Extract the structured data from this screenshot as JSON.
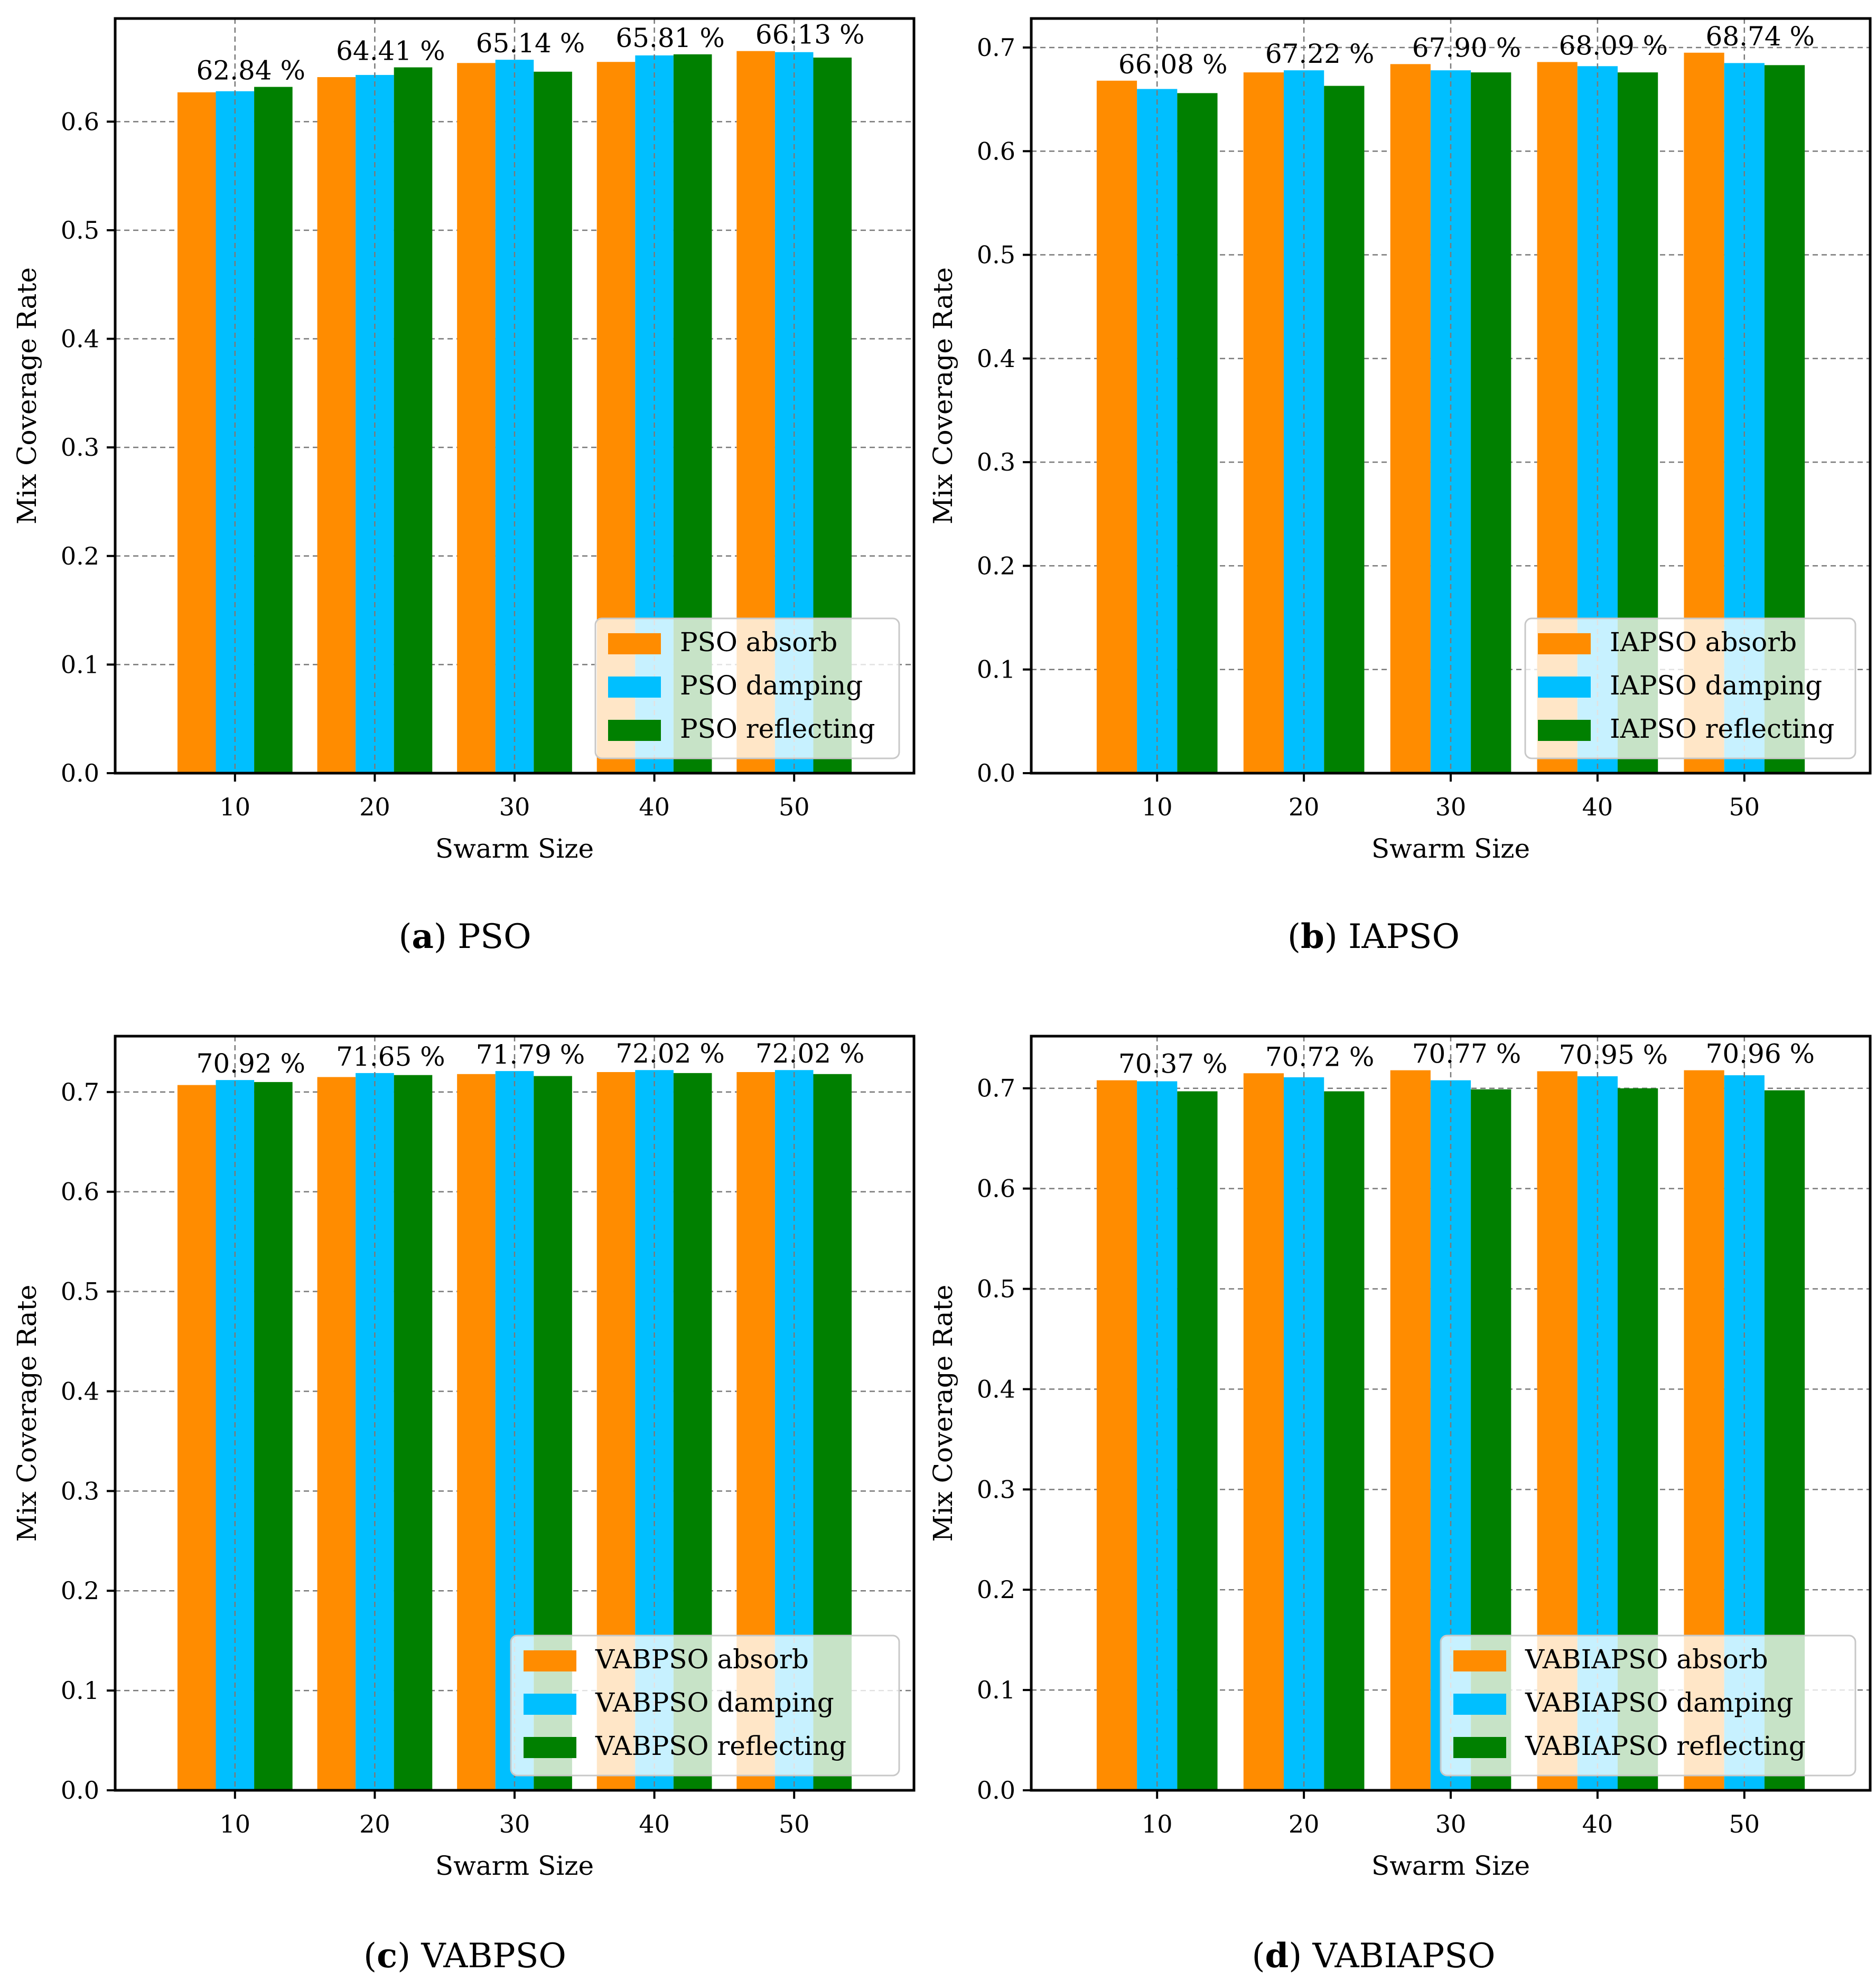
{
  "colors": {
    "absorb": "#FF8C00",
    "damping": "#00BFFF",
    "reflecting": "#008000"
  },
  "chart_data": [
    {
      "type": "bar",
      "caption_letter": "a",
      "caption_text": "PSO",
      "xlabel": "Swarm Size",
      "ylabel": "Mix Coverage Rate",
      "categories": [
        "10",
        "20",
        "30",
        "40",
        "50"
      ],
      "ylim": [
        0,
        0.695
      ],
      "yticks": [
        0.0,
        0.1,
        0.2,
        0.3,
        0.4,
        0.5,
        0.6
      ],
      "ytick_labels": [
        "0.0",
        "0.1",
        "0.2",
        "0.3",
        "0.4",
        "0.5",
        "0.6"
      ],
      "series": [
        {
          "name": "PSO absorb",
          "key": "absorb",
          "values": [
            0.627,
            0.641,
            0.654,
            0.655,
            0.665
          ]
        },
        {
          "name": "PSO damping",
          "key": "damping",
          "values": [
            0.628,
            0.643,
            0.657,
            0.661,
            0.664
          ]
        },
        {
          "name": "PSO reflecting",
          "key": "reflecting",
          "values": [
            0.632,
            0.65,
            0.646,
            0.662,
            0.659
          ]
        }
      ],
      "annotations": [
        "62.84 %",
        "64.41 %",
        "65.14 %",
        "65.81 %",
        "66.13 %"
      ],
      "legend_position": "bottom-right"
    },
    {
      "type": "bar",
      "caption_letter": "b",
      "caption_text": "IAPSO",
      "xlabel": "Swarm Size",
      "ylabel": "Mix Coverage Rate",
      "categories": [
        "10",
        "20",
        "30",
        "40",
        "50"
      ],
      "ylim": [
        0,
        0.728
      ],
      "yticks": [
        0.0,
        0.1,
        0.2,
        0.3,
        0.4,
        0.5,
        0.6,
        0.7
      ],
      "ytick_labels": [
        "0.0",
        "0.1",
        "0.2",
        "0.3",
        "0.4",
        "0.5",
        "0.6",
        "0.7"
      ],
      "series": [
        {
          "name": "IAPSO absorb",
          "key": "absorb",
          "values": [
            0.668,
            0.676,
            0.684,
            0.686,
            0.695
          ]
        },
        {
          "name": "IAPSO damping",
          "key": "damping",
          "values": [
            0.66,
            0.678,
            0.678,
            0.682,
            0.685
          ]
        },
        {
          "name": "IAPSO reflecting",
          "key": "reflecting",
          "values": [
            0.656,
            0.663,
            0.676,
            0.676,
            0.683
          ]
        }
      ],
      "annotations": [
        "66.08 %",
        "67.22 %",
        "67.90 %",
        "68.09 %",
        "68.74 %"
      ],
      "legend_position": "bottom-right"
    },
    {
      "type": "bar",
      "caption_letter": "c",
      "caption_text": "VABPSO",
      "xlabel": "Swarm Size",
      "ylabel": "Mix Coverage Rate",
      "categories": [
        "10",
        "20",
        "30",
        "40",
        "50"
      ],
      "ylim": [
        0,
        0.756
      ],
      "yticks": [
        0.0,
        0.1,
        0.2,
        0.3,
        0.4,
        0.5,
        0.6,
        0.7
      ],
      "ytick_labels": [
        "0.0",
        "0.1",
        "0.2",
        "0.3",
        "0.4",
        "0.5",
        "0.6",
        "0.7"
      ],
      "series": [
        {
          "name": "VABPSO absorb",
          "key": "absorb",
          "values": [
            0.707,
            0.715,
            0.718,
            0.72,
            0.72
          ]
        },
        {
          "name": "VABPSO damping",
          "key": "damping",
          "values": [
            0.712,
            0.719,
            0.721,
            0.722,
            0.722
          ]
        },
        {
          "name": "VABPSO reflecting",
          "key": "reflecting",
          "values": [
            0.71,
            0.717,
            0.716,
            0.719,
            0.718
          ]
        }
      ],
      "annotations": [
        "70.92 %",
        "71.65 %",
        "71.79 %",
        "72.02 %",
        "72.02 %"
      ],
      "legend_position": "bottom-right"
    },
    {
      "type": "bar",
      "caption_letter": "d",
      "caption_text": "VABIAPSO",
      "xlabel": "Swarm Size",
      "ylabel": "Mix Coverage Rate",
      "categories": [
        "10",
        "20",
        "30",
        "40",
        "50"
      ],
      "ylim": [
        0,
        0.752
      ],
      "yticks": [
        0.0,
        0.1,
        0.2,
        0.3,
        0.4,
        0.5,
        0.6,
        0.7
      ],
      "ytick_labels": [
        "0.0",
        "0.1",
        "0.2",
        "0.3",
        "0.4",
        "0.5",
        "0.6",
        "0.7"
      ],
      "series": [
        {
          "name": "VABIAPSO absorb",
          "key": "absorb",
          "values": [
            0.708,
            0.715,
            0.718,
            0.717,
            0.718
          ]
        },
        {
          "name": "VABIAPSO damping",
          "key": "damping",
          "values": [
            0.707,
            0.711,
            0.708,
            0.712,
            0.713
          ]
        },
        {
          "name": "VABIAPSO reflecting",
          "key": "reflecting",
          "values": [
            0.697,
            0.697,
            0.699,
            0.7,
            0.698
          ]
        }
      ],
      "annotations": [
        "70.37 %",
        "70.72 %",
        "70.77 %",
        "70.95 %",
        "70.96 %"
      ],
      "legend_position": "bottom-right"
    }
  ]
}
